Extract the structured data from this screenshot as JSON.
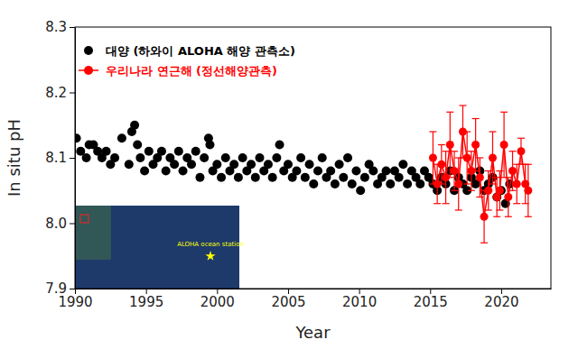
{
  "chart_data": {
    "type": "scatter",
    "xlabel": "Year",
    "ylabel": "In situ pH",
    "xlim": [
      1990,
      2023.5
    ],
    "xticks": [
      1990,
      1995,
      2000,
      2005,
      2010,
      2015,
      2020
    ],
    "ylim": [
      7.9,
      8.3
    ],
    "yticks": [
      7.9,
      {
        "value": 8.0,
        "label": "8.0"
      },
      8.1,
      8.2,
      8.3
    ],
    "grid": false,
    "legend": "upper left",
    "annotations": [
      "ALOHA ocean station"
    ],
    "series": [
      {
        "name": "대양 (하와이 ALOHA 해양 관측소)",
        "color": "#000000",
        "type": "scatter",
        "marker": "circle",
        "x": [
          1990.1,
          1990.4,
          1990.8,
          1991.0,
          1991.3,
          1991.6,
          1991.9,
          1992.2,
          1992.5,
          1992.8,
          1993.3,
          1993.8,
          1994.0,
          1994.2,
          1994.4,
          1994.6,
          1994.9,
          1995.2,
          1995.5,
          1995.8,
          1996.1,
          1996.4,
          1996.7,
          1997.0,
          1997.3,
          1997.6,
          1997.9,
          1998.2,
          1998.5,
          1998.8,
          1999.1,
          1999.4,
          1999.5,
          1999.7,
          2000.0,
          2000.3,
          2000.6,
          2000.9,
          2001.2,
          2001.5,
          2001.8,
          2002.1,
          2002.4,
          2002.7,
          2003.0,
          2003.3,
          2003.6,
          2003.9,
          2004.2,
          2004.4,
          2004.7,
          2005.0,
          2005.3,
          2005.6,
          2005.9,
          2006.2,
          2006.5,
          2006.8,
          2007.1,
          2007.4,
          2007.7,
          2008.0,
          2008.3,
          2008.6,
          2008.9,
          2009.2,
          2009.5,
          2009.8,
          2010.1,
          2010.4,
          2010.7,
          2011.0,
          2011.3,
          2011.6,
          2011.9,
          2012.2,
          2012.5,
          2012.8,
          2013.1,
          2013.4,
          2013.7,
          2014.0,
          2014.3,
          2014.6,
          2014.9,
          2015.2,
          2015.5,
          2015.8,
          2016.1,
          2016.4,
          2016.7,
          2017.0,
          2017.3,
          2017.6,
          2017.9,
          2018.2,
          2018.5,
          2018.8,
          2019.1,
          2019.4,
          2019.7,
          2020.0,
          2020.3,
          2020.6
        ],
        "values": [
          8.13,
          8.11,
          8.1,
          8.12,
          8.12,
          8.11,
          8.1,
          8.11,
          8.09,
          8.1,
          8.13,
          8.09,
          8.14,
          8.15,
          8.12,
          8.1,
          8.08,
          8.11,
          8.09,
          8.1,
          8.11,
          8.08,
          8.1,
          8.09,
          8.11,
          8.08,
          8.1,
          8.09,
          8.11,
          8.07,
          8.1,
          8.13,
          8.12,
          8.08,
          8.09,
          8.07,
          8.1,
          8.08,
          8.09,
          8.07,
          8.1,
          8.08,
          8.09,
          8.07,
          8.1,
          8.08,
          8.09,
          8.07,
          8.1,
          8.12,
          8.08,
          8.09,
          8.07,
          8.08,
          8.1,
          8.07,
          8.09,
          8.06,
          8.08,
          8.1,
          8.07,
          8.08,
          8.06,
          8.09,
          8.07,
          8.1,
          8.06,
          8.08,
          8.05,
          8.07,
          8.09,
          8.08,
          8.06,
          8.07,
          8.08,
          8.06,
          8.08,
          8.07,
          8.09,
          8.06,
          8.08,
          8.07,
          8.06,
          8.08,
          8.07,
          8.06,
          8.05,
          8.07,
          8.06,
          8.08,
          8.05,
          8.07,
          8.06,
          8.05,
          8.07,
          8.06,
          8.08,
          8.05,
          8.06,
          8.07,
          8.04,
          8.05,
          8.03,
          8.06
        ]
      },
      {
        "name": "우리나라 연근해 (정선해양관측)",
        "color": "#ff0000",
        "type": "line",
        "marker": "circle",
        "line_style": "solid",
        "x": [
          2015.2,
          2015.5,
          2015.8,
          2016.1,
          2016.4,
          2016.7,
          2017.0,
          2017.3,
          2017.6,
          2017.9,
          2018.2,
          2018.5,
          2018.8,
          2019.1,
          2019.4,
          2019.7,
          2019.9,
          2020.2,
          2020.5,
          2020.8,
          2021.1,
          2021.4,
          2021.7,
          2021.9
        ],
        "values": [
          8.1,
          8.06,
          8.09,
          8.07,
          8.12,
          8.08,
          8.06,
          8.14,
          8.1,
          8.08,
          8.12,
          8.07,
          8.01,
          8.05,
          8.1,
          8.04,
          8.05,
          8.12,
          8.04,
          8.08,
          8.06,
          8.11,
          8.06,
          8.05
        ],
        "errors": [
          0.04,
          0.03,
          0.03,
          0.04,
          0.05,
          0.03,
          0.04,
          0.04,
          0.04,
          0.03,
          0.04,
          0.03,
          0.04,
          0.03,
          0.04,
          0.03,
          0.03,
          0.05,
          0.03,
          0.03,
          0.03,
          0.02,
          0.03,
          0.04
        ]
      }
    ]
  }
}
